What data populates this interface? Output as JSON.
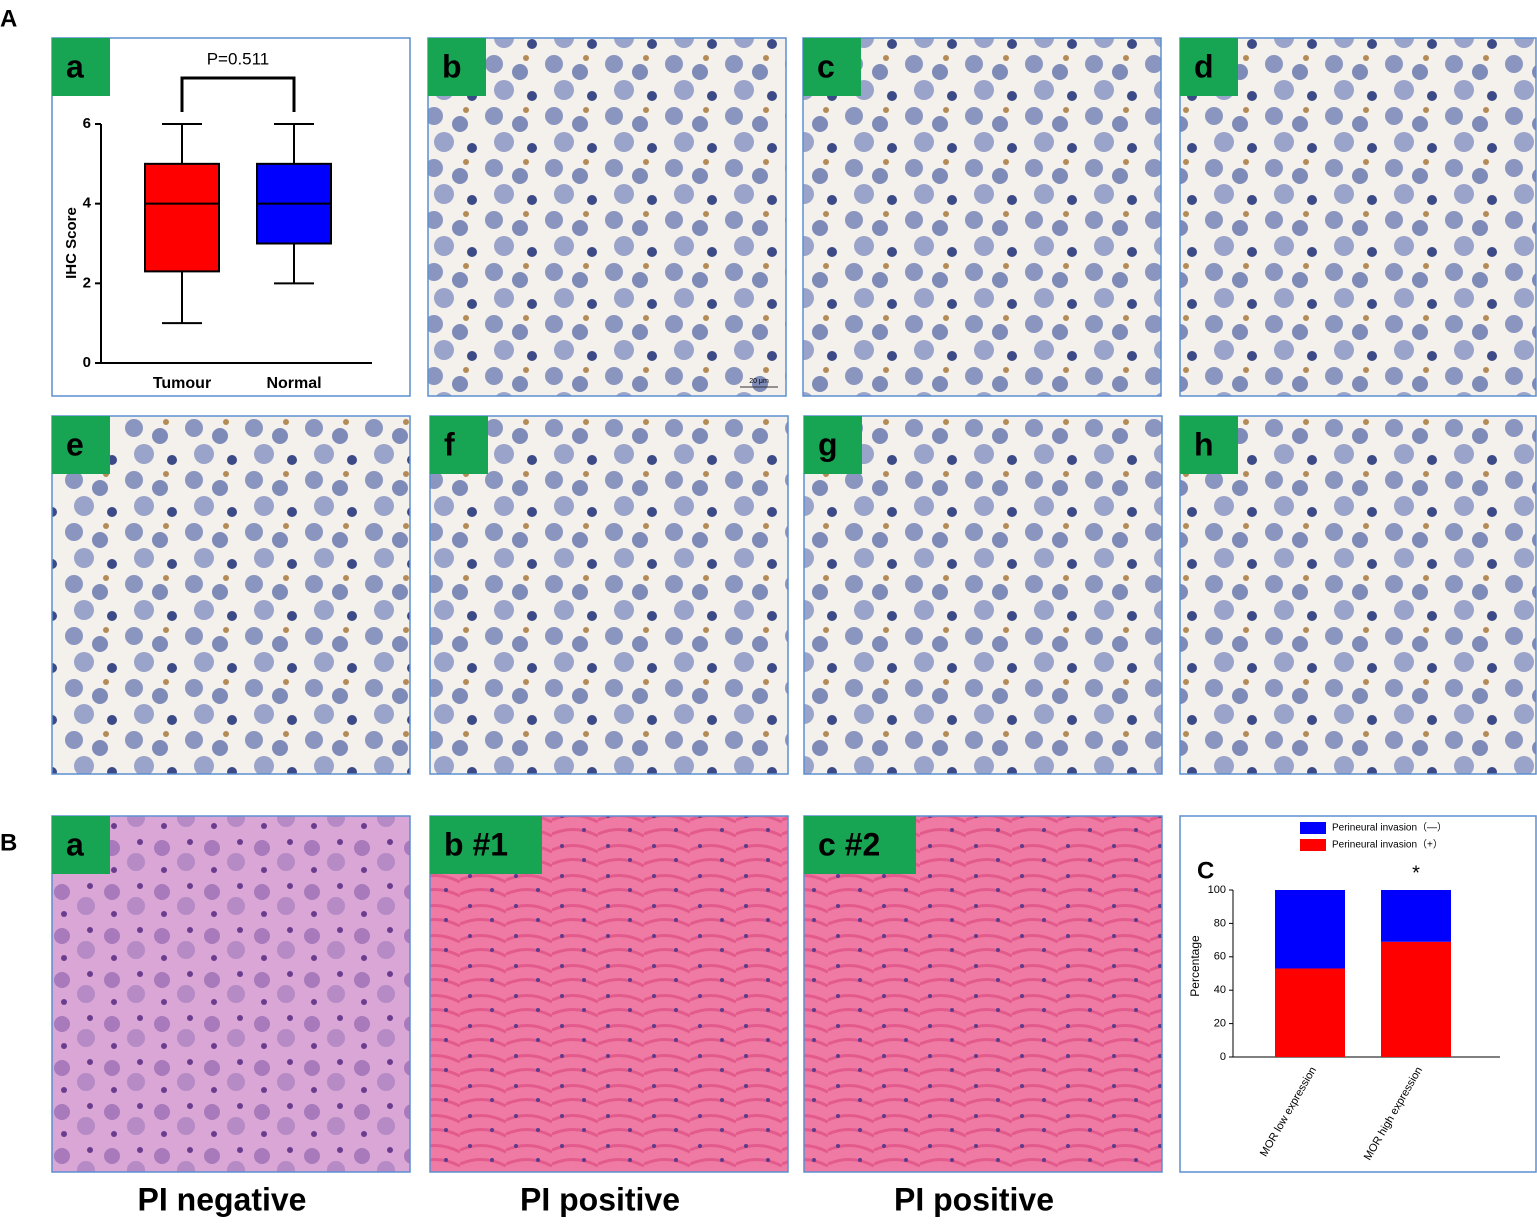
{
  "panel_letters": [
    "A",
    "B",
    "C"
  ],
  "boxplot_label": "a",
  "ihc_images": {
    "labels": [
      "b",
      "c",
      "d",
      "e",
      "f",
      "g",
      "h"
    ],
    "scale_bar": "20 μm"
  },
  "he_images": {
    "labels": [
      "a",
      "b #1",
      "c #2"
    ],
    "captions": [
      "PI negative",
      "PI positive",
      "PI positive"
    ]
  },
  "chart_data": [
    {
      "type": "box",
      "ylabel": "IHC Score",
      "annotation": "P=0.511",
      "categories": [
        "Tumour",
        "Normal"
      ],
      "stats": {
        "min": [
          1,
          2
        ],
        "q1": [
          2.3,
          3
        ],
        "median": [
          4,
          4
        ],
        "q3": [
          5,
          5
        ],
        "max": [
          6,
          6
        ]
      },
      "colors": [
        "#ff0000",
        "#0000ff"
      ],
      "ylim": [
        0,
        6
      ],
      "yticks": [
        0,
        2,
        4,
        6
      ]
    },
    {
      "type": "stacked_bar",
      "ylabel": "Percentage",
      "annotation": "*",
      "categories": [
        "MOR low expression",
        "MOR high expression"
      ],
      "series": [
        {
          "name": "Perineural invasion（+）",
          "color": "#ff0000",
          "values": [
            53,
            69
          ]
        },
        {
          "name": "Perineural invasion（—）",
          "color": "#0000ff",
          "values": [
            47,
            31
          ]
        }
      ],
      "ylim": [
        0,
        100
      ],
      "yticks": [
        0,
        20,
        40,
        60,
        80,
        100
      ]
    }
  ]
}
